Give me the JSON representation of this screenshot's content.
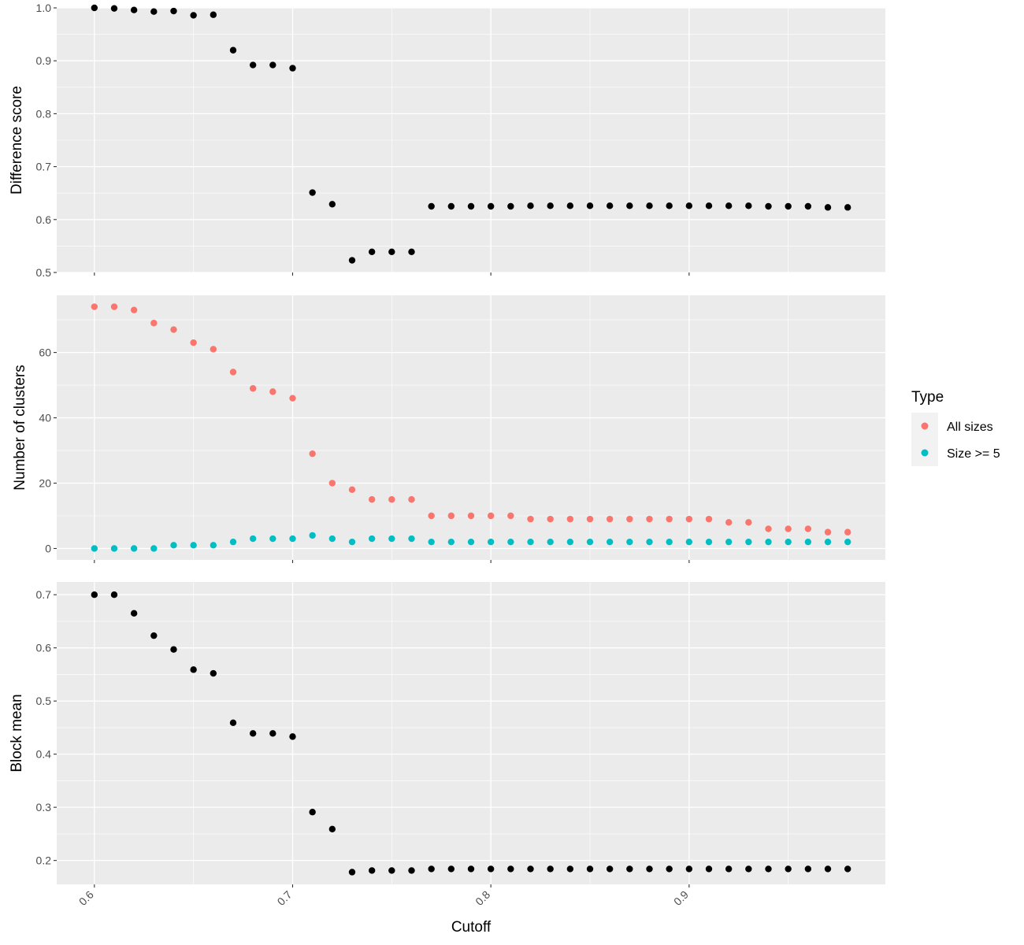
{
  "chart_data": [
    {
      "type": "scatter",
      "ylabel": "Difference score",
      "xlim": [
        0.581,
        0.999
      ],
      "ylim": [
        0.5,
        1.0
      ],
      "yticks": [
        "0.5",
        "0.6",
        "0.7",
        "0.8",
        "0.9",
        "1.0"
      ],
      "grid": true,
      "point_color": "#000000",
      "series": [
        {
          "x": [
            0.6,
            0.61,
            0.62,
            0.63,
            0.64,
            0.65,
            0.66,
            0.67,
            0.68,
            0.69,
            0.7,
            0.71,
            0.72,
            0.73,
            0.74,
            0.75,
            0.76,
            0.77,
            0.78,
            0.79,
            0.8,
            0.81,
            0.82,
            0.83,
            0.84,
            0.85,
            0.86,
            0.87,
            0.88,
            0.89,
            0.9,
            0.91,
            0.92,
            0.93,
            0.94,
            0.95,
            0.96,
            0.97,
            0.98
          ],
          "y": [
            1.0,
            0.999,
            0.996,
            0.993,
            0.994,
            0.986,
            0.987,
            0.92,
            0.892,
            0.892,
            0.886,
            0.651,
            0.629,
            0.523,
            0.539,
            0.539,
            0.539,
            0.625,
            0.625,
            0.625,
            0.625,
            0.625,
            0.626,
            0.626,
            0.626,
            0.626,
            0.626,
            0.626,
            0.626,
            0.626,
            0.626,
            0.626,
            0.626,
            0.626,
            0.625,
            0.625,
            0.625,
            0.623,
            0.623
          ]
        }
      ]
    },
    {
      "type": "scatter",
      "ylabel": "Number of clusters",
      "xlim": [
        0.581,
        0.999
      ],
      "ylim": [
        -3.5,
        77.5
      ],
      "yticks": [
        "0",
        "20",
        "40",
        "60"
      ],
      "grid": true,
      "legend": {
        "title": "Type",
        "position": "right",
        "entries": [
          {
            "label": "All sizes",
            "color": "#F8766D"
          },
          {
            "label": "Size >= 5",
            "color": "#00BFC4"
          }
        ]
      },
      "series": [
        {
          "name": "All sizes",
          "color": "#F8766D",
          "x": [
            0.6,
            0.61,
            0.62,
            0.63,
            0.64,
            0.65,
            0.66,
            0.67,
            0.68,
            0.69,
            0.7,
            0.71,
            0.72,
            0.73,
            0.74,
            0.75,
            0.76,
            0.77,
            0.78,
            0.79,
            0.8,
            0.81,
            0.82,
            0.83,
            0.84,
            0.85,
            0.86,
            0.87,
            0.88,
            0.89,
            0.9,
            0.91,
            0.92,
            0.93,
            0.94,
            0.95,
            0.96,
            0.97,
            0.98
          ],
          "y": [
            74,
            74,
            73,
            69,
            67,
            63,
            61,
            54,
            49,
            48,
            46,
            29,
            20,
            18,
            15,
            15,
            15,
            10,
            10,
            10,
            10,
            10,
            9,
            9,
            9,
            9,
            9,
            9,
            9,
            9,
            9,
            9,
            8,
            8,
            6,
            6,
            6,
            5,
            5
          ]
        },
        {
          "name": "Size >= 5",
          "color": "#00BFC4",
          "x": [
            0.6,
            0.61,
            0.62,
            0.63,
            0.64,
            0.65,
            0.66,
            0.67,
            0.68,
            0.69,
            0.7,
            0.71,
            0.72,
            0.73,
            0.74,
            0.75,
            0.76,
            0.77,
            0.78,
            0.79,
            0.8,
            0.81,
            0.82,
            0.83,
            0.84,
            0.85,
            0.86,
            0.87,
            0.88,
            0.89,
            0.9,
            0.91,
            0.92,
            0.93,
            0.94,
            0.95,
            0.96,
            0.97,
            0.98
          ],
          "y": [
            0,
            0,
            0,
            0,
            1,
            1,
            1,
            2,
            3,
            3,
            3,
            4,
            3,
            2,
            3,
            3,
            3,
            2,
            2,
            2,
            2,
            2,
            2,
            2,
            2,
            2,
            2,
            2,
            2,
            2,
            2,
            2,
            2,
            2,
            2,
            2,
            2,
            2,
            2
          ]
        }
      ]
    },
    {
      "type": "scatter",
      "ylabel": "Block mean",
      "xlabel": "Cutoff",
      "xlim": [
        0.581,
        0.999
      ],
      "ylim": [
        0.155,
        0.724
      ],
      "xticks": [
        "0.6",
        "0.7",
        "0.8",
        "0.9"
      ],
      "yticks": [
        "0.2",
        "0.3",
        "0.4",
        "0.5",
        "0.6",
        "0.7"
      ],
      "grid": true,
      "point_color": "#000000",
      "series": [
        {
          "x": [
            0.6,
            0.61,
            0.62,
            0.63,
            0.64,
            0.65,
            0.66,
            0.67,
            0.68,
            0.69,
            0.7,
            0.71,
            0.72,
            0.73,
            0.74,
            0.75,
            0.76,
            0.77,
            0.78,
            0.79,
            0.8,
            0.81,
            0.82,
            0.83,
            0.84,
            0.85,
            0.86,
            0.87,
            0.88,
            0.89,
            0.9,
            0.91,
            0.92,
            0.93,
            0.94,
            0.95,
            0.96,
            0.97,
            0.98
          ],
          "y": [
            0.7,
            0.7,
            0.665,
            0.623,
            0.597,
            0.559,
            0.552,
            0.459,
            0.439,
            0.439,
            0.433,
            0.291,
            0.259,
            0.178,
            0.181,
            0.181,
            0.181,
            0.184,
            0.184,
            0.184,
            0.184,
            0.184,
            0.184,
            0.184,
            0.184,
            0.184,
            0.184,
            0.184,
            0.184,
            0.184,
            0.184,
            0.184,
            0.184,
            0.184,
            0.184,
            0.184,
            0.184,
            0.184,
            0.184
          ]
        }
      ]
    }
  ],
  "colors": {
    "panel_background": "#EBEBEB",
    "grid": "#FFFFFF",
    "tick_text": "#4D4D4D",
    "tick_mark": "#333333"
  }
}
